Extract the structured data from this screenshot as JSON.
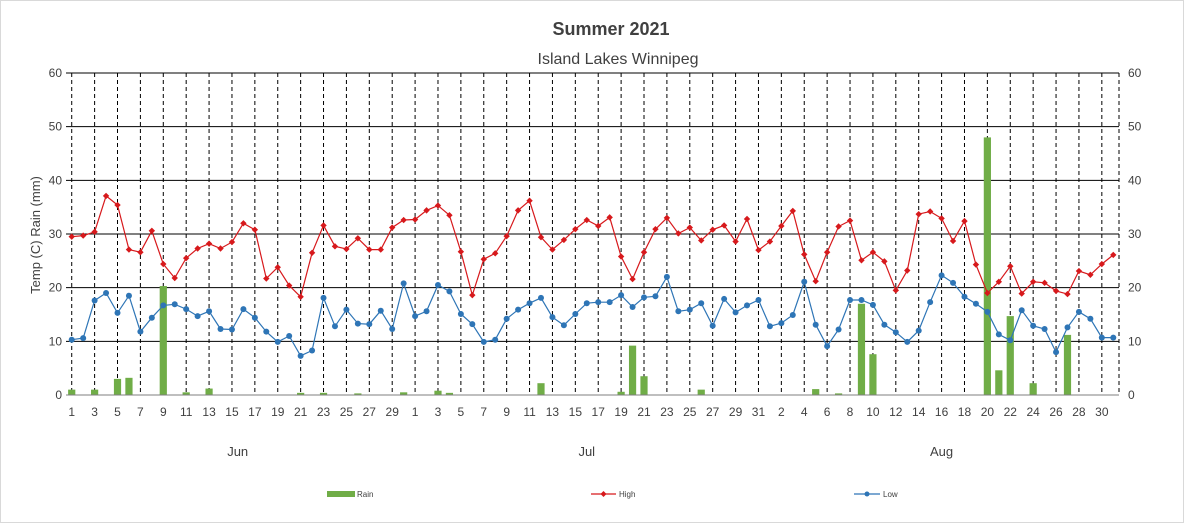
{
  "chart_data": {
    "type": "line",
    "title": "Summer 2021",
    "subtitle": "Island Lakes Winnipeg",
    "ylabel": "Temp (C) Rain (mm)",
    "ylim": [
      0,
      60
    ],
    "yticks": [
      0,
      10,
      20,
      30,
      40,
      50,
      60
    ],
    "y2ticks": [
      0,
      10,
      20,
      30,
      40,
      50,
      60
    ],
    "grid": true,
    "legend_position": "bottom",
    "months": [
      "Jun",
      "Jul",
      "Aug"
    ],
    "x_tick_labels": [
      "1",
      "3",
      "5",
      "7",
      "9",
      "11",
      "13",
      "15",
      "17",
      "19",
      "21",
      "23",
      "25",
      "27",
      "29",
      "1",
      "3",
      "5",
      "7",
      "9",
      "11",
      "13",
      "15",
      "17",
      "19",
      "21",
      "23",
      "25",
      "27",
      "29",
      "31",
      "2",
      "4",
      "6",
      "8",
      "10",
      "12",
      "14",
      "16",
      "18",
      "20",
      "22",
      "24",
      "26",
      "28",
      "30"
    ],
    "dates": [
      "Jun 1",
      "Jun 2",
      "Jun 3",
      "Jun 4",
      "Jun 5",
      "Jun 6",
      "Jun 7",
      "Jun 8",
      "Jun 9",
      "Jun 10",
      "Jun 11",
      "Jun 12",
      "Jun 13",
      "Jun 14",
      "Jun 15",
      "Jun 16",
      "Jun 17",
      "Jun 18",
      "Jun 19",
      "Jun 20",
      "Jun 21",
      "Jun 22",
      "Jun 23",
      "Jun 24",
      "Jun 25",
      "Jun 26",
      "Jun 27",
      "Jun 28",
      "Jun 29",
      "Jun 30",
      "Jul 1",
      "Jul 2",
      "Jul 3",
      "Jul 4",
      "Jul 5",
      "Jul 6",
      "Jul 7",
      "Jul 8",
      "Jul 9",
      "Jul 10",
      "Jul 11",
      "Jul 12",
      "Jul 13",
      "Jul 14",
      "Jul 15",
      "Jul 16",
      "Jul 17",
      "Jul 18",
      "Jul 19",
      "Jul 20",
      "Jul 21",
      "Jul 22",
      "Jul 23",
      "Jul 24",
      "Jul 25",
      "Jul 26",
      "Jul 27",
      "Jul 28",
      "Jul 29",
      "Jul 30",
      "Jul 31",
      "Aug 1",
      "Aug 2",
      "Aug 3",
      "Aug 4",
      "Aug 5",
      "Aug 6",
      "Aug 7",
      "Aug 8",
      "Aug 9",
      "Aug 10",
      "Aug 11",
      "Aug 12",
      "Aug 13",
      "Aug 14",
      "Aug 15",
      "Aug 16",
      "Aug 17",
      "Aug 18",
      "Aug 19",
      "Aug 20",
      "Aug 21",
      "Aug 22",
      "Aug 23",
      "Aug 24",
      "Aug 25",
      "Aug 26",
      "Aug 27",
      "Aug 28",
      "Aug 29",
      "Aug 30",
      "Aug 31"
    ],
    "series": [
      {
        "name": "Rain",
        "kind": "bar",
        "color": "#70ad47",
        "values": [
          1,
          0,
          1,
          0,
          3,
          3.2,
          0,
          0,
          20.3,
          0,
          0.5,
          0,
          1.2,
          0,
          0,
          0,
          0,
          0,
          0,
          0,
          0.4,
          0,
          0.4,
          0,
          0,
          0.3,
          0,
          0,
          0,
          0.5,
          0,
          0,
          0.8,
          0.4,
          0,
          0,
          0,
          0,
          0,
          0,
          0,
          2.2,
          0,
          0,
          0,
          0,
          0,
          0,
          0.6,
          9.2,
          3.5,
          0,
          0,
          0,
          0,
          1,
          0,
          0,
          0,
          0,
          0,
          0,
          0,
          0,
          0,
          1.1,
          0,
          0.3,
          0,
          17,
          7.6,
          0,
          0,
          0,
          0,
          0,
          0,
          0,
          0,
          0,
          48,
          4.6,
          14.7,
          0,
          2.2,
          0,
          0,
          11.2,
          0,
          0,
          0,
          0
        ]
      },
      {
        "name": "High",
        "kind": "line",
        "color": "#d7191c",
        "values": [
          29.5,
          29.7,
          30.4,
          37.1,
          35.4,
          27.1,
          26.6,
          30.6,
          24.4,
          21.8,
          25.5,
          27.3,
          28.2,
          27.3,
          28.5,
          32,
          30.8,
          21.7,
          23.8,
          20.4,
          18.3,
          26.5,
          31.6,
          27.7,
          27.2,
          29.2,
          27.1,
          27.1,
          31.2,
          32.6,
          32.7,
          34.4,
          35.3,
          33.5,
          26.7,
          18.6,
          25.3,
          26.4,
          29.6,
          34.4,
          36.2,
          29.4,
          27.1,
          28.9,
          30.9,
          32.6,
          31.5,
          33.1,
          25.8,
          21.6,
          26.6,
          30.9,
          33,
          30.1,
          31.2,
          28.8,
          30.8,
          31.6,
          28.6,
          32.8,
          27,
          28.6,
          31.5,
          34.3,
          26.2,
          21.2,
          26.6,
          31.4,
          32.5,
          25.1,
          26.6,
          24.9,
          19.5,
          23.2,
          33.7,
          34.2,
          32.9,
          28.7,
          32.4,
          24.3,
          19,
          21.1,
          24,
          18.9,
          21.1,
          20.9,
          19.4,
          18.8,
          23.1,
          22.4,
          24.4,
          26.1
        ]
      },
      {
        "name": "Low",
        "kind": "line",
        "color": "#2e75b6",
        "values": [
          10.3,
          10.6,
          17.6,
          19,
          15.3,
          18.5,
          11.8,
          14.4,
          16.7,
          16.9,
          16,
          14.7,
          15.6,
          12.3,
          12.2,
          16,
          14.4,
          11.8,
          9.9,
          11,
          7.3,
          8.3,
          18.1,
          12.8,
          15.9,
          13.3,
          13.2,
          15.7,
          12.3,
          20.8,
          14.7,
          15.6,
          20.5,
          19.3,
          15.1,
          13.2,
          9.9,
          10.3,
          14.2,
          15.9,
          17.1,
          18.1,
          14.5,
          13,
          15.1,
          17.1,
          17.3,
          17.3,
          18.6,
          16.4,
          18.2,
          18.4,
          22,
          15.6,
          15.9,
          17.1,
          12.9,
          17.9,
          15.4,
          16.7,
          17.7,
          12.8,
          13.4,
          14.9,
          21.1,
          13.1,
          9.1,
          12.2,
          17.7,
          17.7,
          16.8,
          13.1,
          11.7,
          9.9,
          12,
          17.3,
          22.3,
          20.9,
          18.3,
          17,
          15.5,
          11.3,
          10.2,
          15.8,
          12.9,
          12.3,
          8,
          12.6,
          15.5,
          14.2,
          10.7,
          10.7
        ]
      }
    ]
  }
}
